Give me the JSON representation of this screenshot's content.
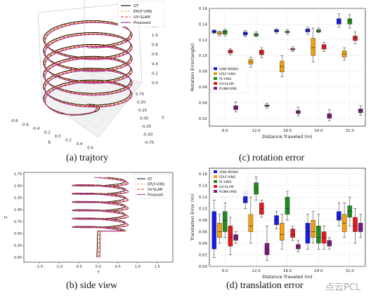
{
  "captions": {
    "a": "(a) trajtory",
    "b": "(b) side view",
    "c": "(c) rotation error",
    "d": "(d) translation error"
  },
  "watermark": "点云PCL",
  "colors": {
    "GT": "#000000",
    "EPLF-VINS": "#f5a623",
    "UV-SLAM": "#e03030",
    "Proposed": "#9a2a8a",
    "box_blue": "#1a1ae6",
    "box_orange": "#f0a010",
    "box_green": "#1f8a1f",
    "box_red": "#e41a1a",
    "box_purple": "#7a1a7a"
  },
  "chart_data": [
    {
      "type": "line",
      "panel": "a",
      "legend": [
        "GT",
        "EPLF-VINS",
        "UV-SLAM",
        "Proposed"
      ],
      "legend_position": "top-right",
      "xlabel": "X",
      "ylabel": "Y",
      "x_ticks": [
        "-0.8",
        "-0.6",
        "-0.4",
        "-0.2",
        "0.0",
        "0.2",
        "0.4",
        "0.6",
        "0.8"
      ],
      "y_ticks": [
        "-0.75",
        "-0.50",
        "-0.25",
        "0.00",
        "0.25",
        "0.50",
        "0.75"
      ],
      "z_ticks": [
        "0.0",
        "0.2",
        "0.4",
        "0.6",
        "0.8",
        "1.0",
        "1.2",
        "1.4",
        "1.6"
      ]
    },
    {
      "type": "line",
      "panel": "b",
      "legend": [
        "GT",
        "EPLF-VINS",
        "UV-SLAM",
        "Proposed"
      ],
      "legend_position": "top-right",
      "xlabel": "Y",
      "ylabel": "Z",
      "x_ticks": [
        "-1.5",
        "-1.0",
        "-0.5",
        "0.0",
        "0.5",
        "1.0",
        "1.5"
      ],
      "y_ticks": [
        "0.00",
        "0.25",
        "0.50",
        "0.75",
        "1.00",
        "1.25",
        "1.50",
        "1.75"
      ],
      "xlim": [
        -1.9,
        1.9
      ],
      "ylim": [
        -0.1,
        1.78
      ]
    },
    {
      "type": "box",
      "panel": "c",
      "xlabel": "Distance Traveled (m)",
      "ylabel": "Rotation Error(angle)",
      "categories": [
        "6.0",
        "12.0",
        "18.0",
        "24.0",
        "31.0"
      ],
      "ylim": [
        0.01,
        0.16
      ],
      "y_ticks": [
        "0.02",
        "0.04",
        "0.06",
        "0.08",
        "0.10",
        "0.12",
        "0.14",
        "0.16"
      ],
      "grid": true,
      "legend_position": "center-left",
      "series": [
        {
          "name": "VINS-MONO",
          "boxes": [
            [
              0.128,
              0.129,
              0.13,
              0.132,
              0.133
            ],
            [
              0.124,
              0.126,
              0.128,
              0.13,
              0.132
            ],
            [
              0.128,
              0.13,
              0.132,
              0.133,
              0.134
            ],
            [
              0.127,
              0.13,
              0.132,
              0.134,
              0.136
            ],
            [
              0.136,
              0.14,
              0.143,
              0.147,
              0.153
            ]
          ]
        },
        {
          "name": "EPLF-VINS",
          "boxes": [
            [
              0.125,
              0.127,
              0.128,
              0.13,
              0.131
            ],
            [
              0.085,
              0.089,
              0.092,
              0.095,
              0.098
            ],
            [
              0.073,
              0.079,
              0.086,
              0.093,
              0.1
            ],
            [
              0.092,
              0.1,
              0.11,
              0.122,
              0.135
            ],
            [
              0.094,
              0.098,
              0.102,
              0.106,
              0.11
            ]
          ]
        },
        {
          "name": "PL-VINS",
          "boxes": [
            [
              0.125,
              0.127,
              0.13,
              0.132,
              0.134
            ],
            [
              0.124,
              0.125,
              0.126,
              0.128,
              0.13
            ],
            [
              0.127,
              0.129,
              0.13,
              0.131,
              0.133
            ],
            [
              0.129,
              0.13,
              0.131,
              0.133,
              0.135
            ],
            [
              0.135,
              0.14,
              0.144,
              0.147,
              0.152
            ]
          ]
        },
        {
          "name": "UV-SLAM",
          "boxes": [
            [
              0.101,
              0.103,
              0.105,
              0.107,
              0.109
            ],
            [
              0.097,
              0.101,
              0.104,
              0.107,
              0.11
            ],
            [
              0.105,
              0.107,
              0.108,
              0.109,
              0.111
            ],
            [
              0.105,
              0.108,
              0.111,
              0.114,
              0.117
            ],
            [
              0.115,
              0.119,
              0.122,
              0.125,
              0.13
            ]
          ]
        },
        {
          "name": "PLINK-VINS",
          "boxes": [
            [
              0.028,
              0.031,
              0.034,
              0.036,
              0.041
            ],
            [
              0.033,
              0.035,
              0.036,
              0.037,
              0.039
            ],
            [
              0.023,
              0.026,
              0.028,
              0.03,
              0.034
            ],
            [
              0.017,
              0.02,
              0.023,
              0.026,
              0.031
            ],
            [
              0.024,
              0.027,
              0.03,
              0.032,
              0.036
            ]
          ]
        }
      ]
    },
    {
      "type": "box",
      "panel": "d",
      "xlabel": "Distance Traveled (m)",
      "ylabel": "Translation Error (m)",
      "categories": [
        "6.0",
        "12.0",
        "18.0",
        "24.0",
        "31.0"
      ],
      "ylim": [
        0.0,
        0.17
      ],
      "y_ticks": [
        "0.00",
        "0.02",
        "0.04",
        "0.06",
        "0.08",
        "0.10",
        "0.12",
        "0.14",
        "0.16"
      ],
      "grid": true,
      "legend_position": "top-left",
      "series": [
        {
          "name": "VINS-MONO",
          "boxes": [
            [
              0.015,
              0.03,
              0.06,
              0.095,
              0.115
            ],
            [
              0.1,
              0.11,
              0.12,
              0.13,
              0.14
            ],
            [
              0.065,
              0.072,
              0.08,
              0.088,
              0.095
            ],
            [
              0.03,
              0.04,
              0.06,
              0.075,
              0.09
            ],
            [
              0.07,
              0.08,
              0.085,
              0.095,
              0.11
            ]
          ]
        },
        {
          "name": "EPLF-VINS",
          "boxes": [
            [
              0.04,
              0.05,
              0.06,
              0.075,
              0.09
            ],
            [
              0.04,
              0.06,
              0.07,
              0.09,
              0.12
            ],
            [
              0.03,
              0.045,
              0.055,
              0.075,
              0.09
            ],
            [
              0.04,
              0.05,
              0.06,
              0.08,
              0.095
            ],
            [
              0.05,
              0.06,
              0.075,
              0.09,
              0.11
            ]
          ]
        },
        {
          "name": "PL-VINS",
          "boxes": [
            [
              0.05,
              0.06,
              0.08,
              0.095,
              0.11
            ],
            [
              0.115,
              0.125,
              0.135,
              0.145,
              0.155
            ],
            [
              0.08,
              0.09,
              0.1,
              0.12,
              0.13
            ],
            [
              0.03,
              0.04,
              0.05,
              0.07,
              0.09
            ],
            [
              0.07,
              0.085,
              0.095,
              0.105,
              0.12
            ]
          ]
        },
        {
          "name": "UV-SLAM",
          "boxes": [
            [
              0.02,
              0.035,
              0.05,
              0.07,
              0.085
            ],
            [
              0.085,
              0.09,
              0.1,
              0.11,
              0.115
            ],
            [
              0.045,
              0.05,
              0.055,
              0.065,
              0.07
            ],
            [
              0.03,
              0.04,
              0.05,
              0.06,
              0.07
            ],
            [
              0.04,
              0.06,
              0.07,
              0.085,
              0.1
            ]
          ]
        },
        {
          "name": "PLINK-VINS",
          "boxes": [
            [
              0.04,
              0.045,
              0.05,
              0.055,
              0.06
            ],
            [
              0.01,
              0.02,
              0.03,
              0.04,
              0.07
            ],
            [
              0.025,
              0.03,
              0.035,
              0.038,
              0.045
            ],
            [
              0.03,
              0.035,
              0.04,
              0.045,
              0.05
            ],
            [
              0.05,
              0.06,
              0.065,
              0.075,
              0.09
            ]
          ]
        }
      ]
    }
  ]
}
